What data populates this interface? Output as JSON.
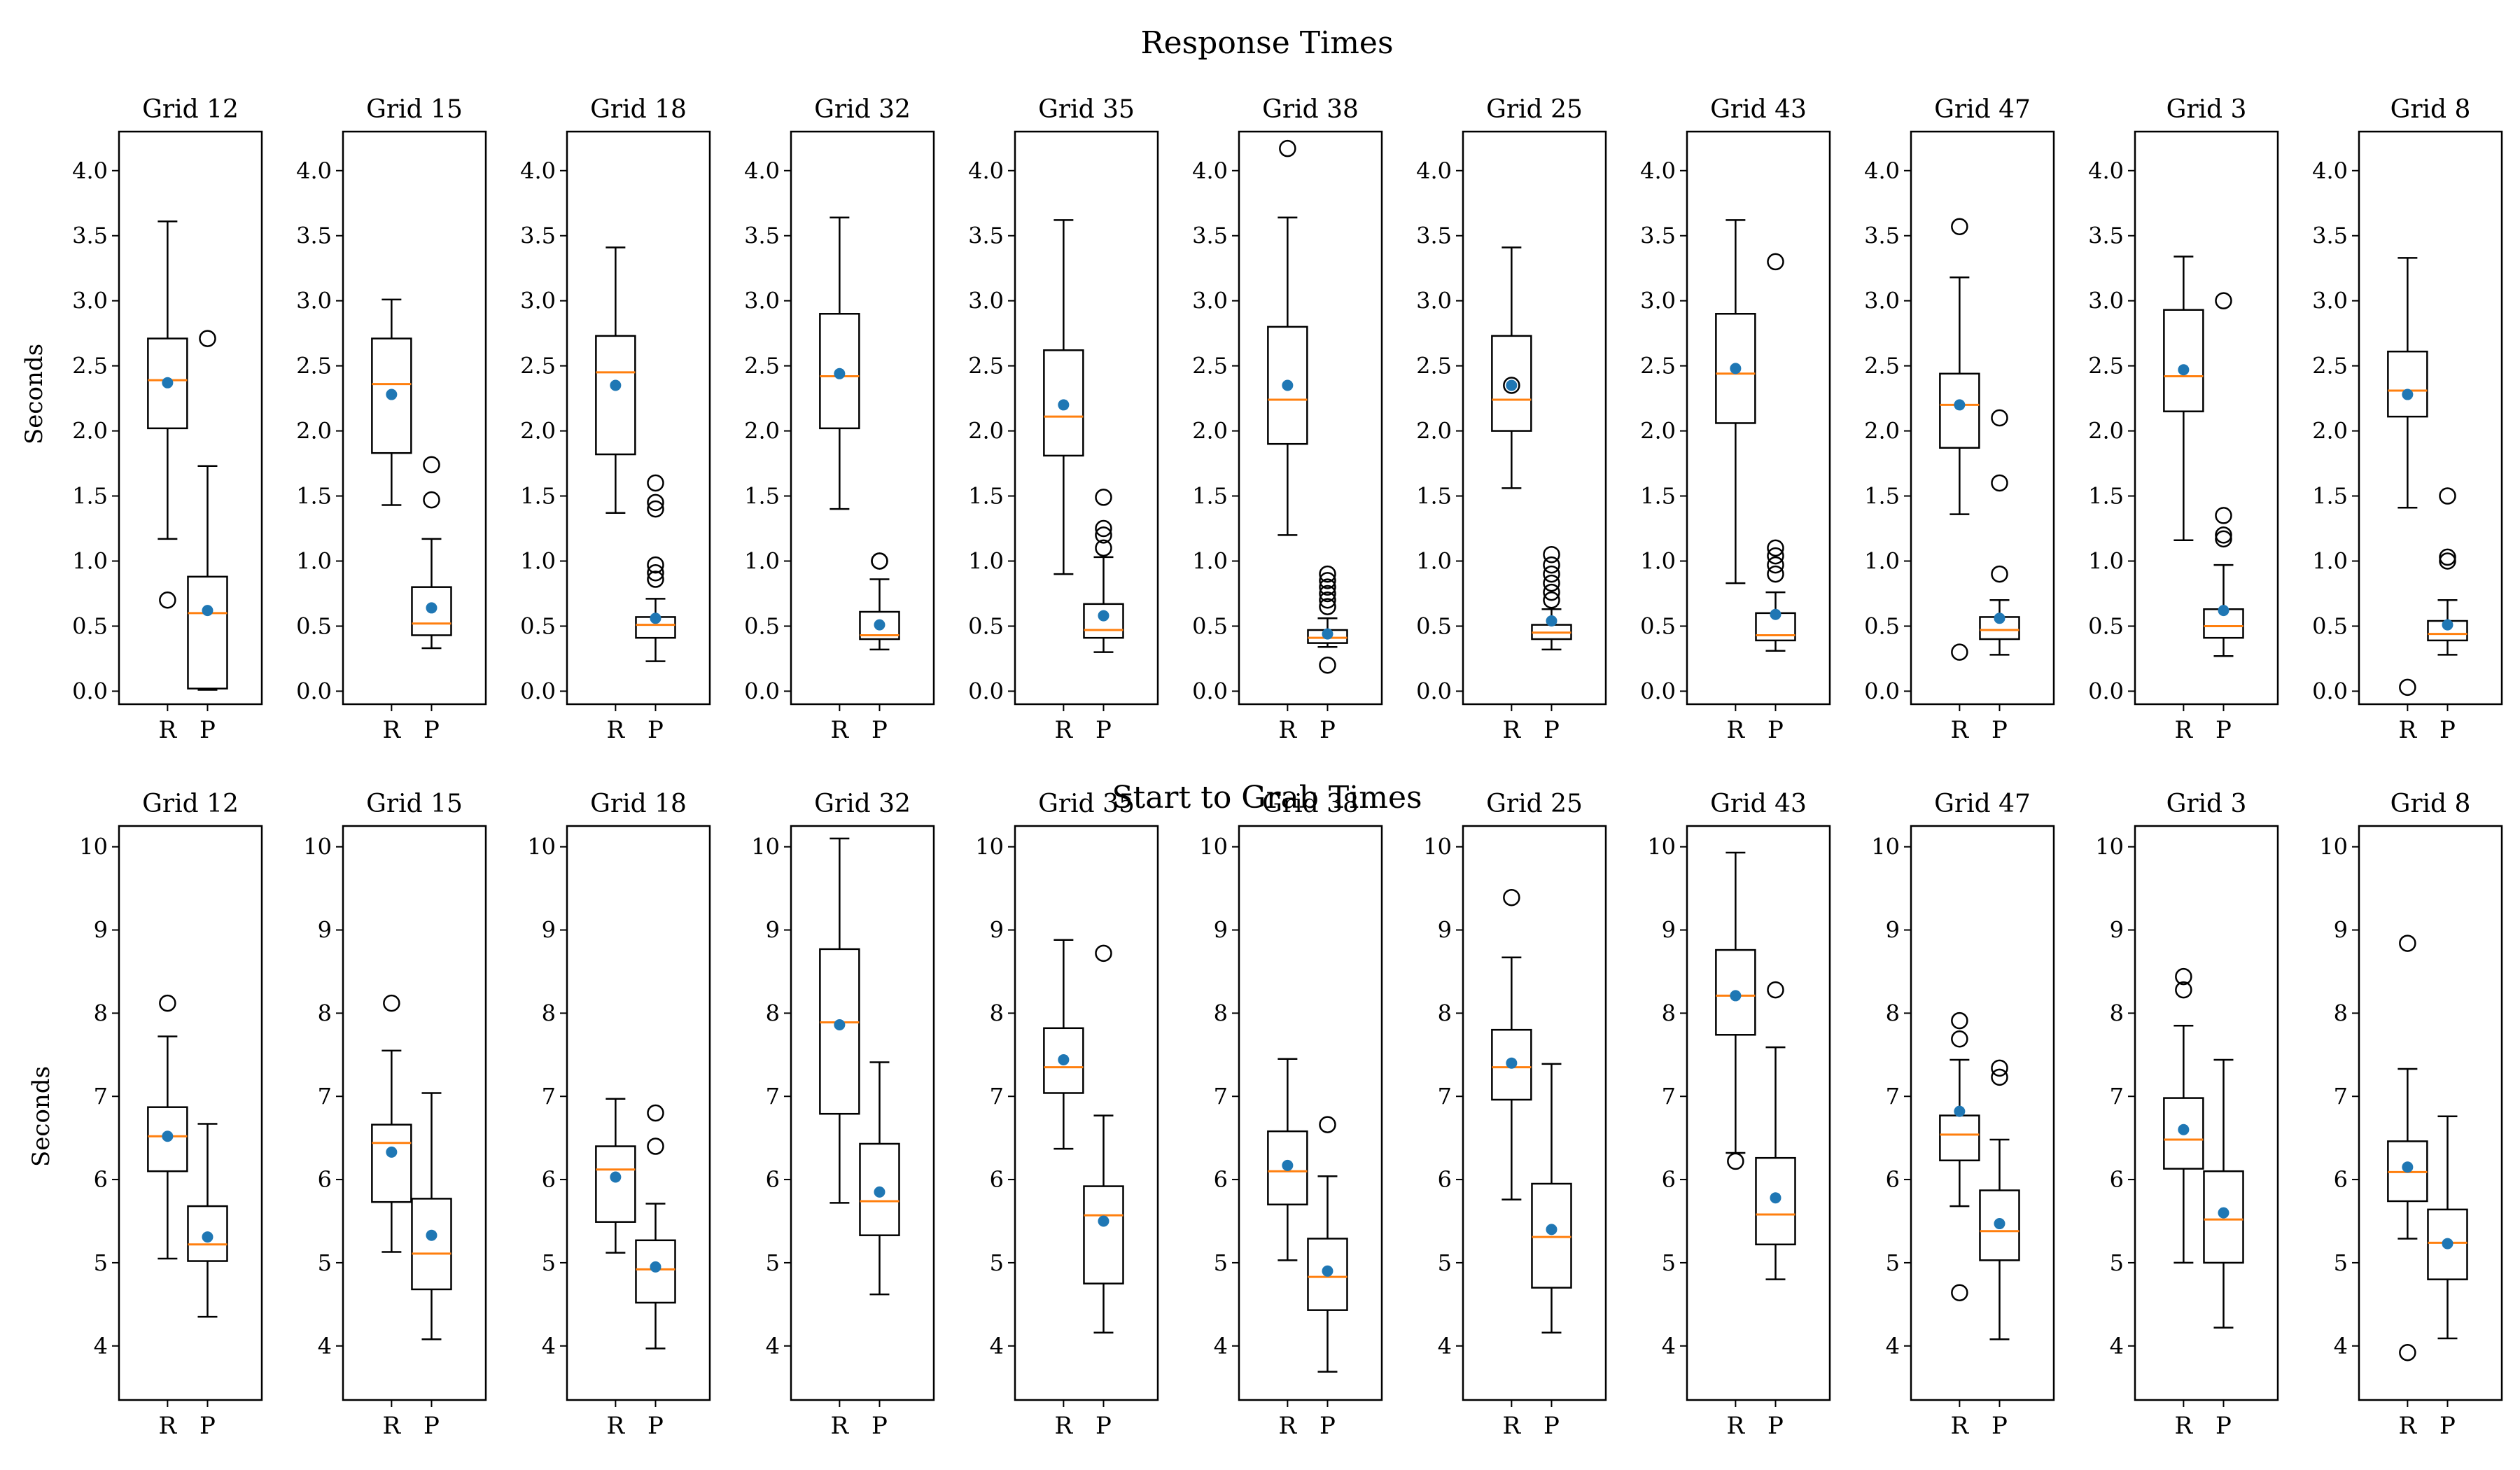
{
  "figure": {
    "rows": [
      {
        "title": "Response Times",
        "ylabel": "Seconds"
      },
      {
        "title": "Start to Grab Times",
        "ylabel": "Seconds"
      }
    ]
  },
  "colors": {
    "box": "#000000",
    "median": "#ff7f0e",
    "mean": "#1f77b4",
    "background": "#ffffff"
  },
  "chart_data": [
    {
      "type": "box",
      "title": "Response Times",
      "ylabel": "Seconds",
      "ylim": [
        -0.1,
        4.3
      ],
      "yticks": [
        0.0,
        0.5,
        1.0,
        1.5,
        2.0,
        2.5,
        3.0,
        3.5,
        4.0
      ],
      "ytick_labels": [
        "0.0",
        "0.5",
        "1.0",
        "1.5",
        "2.0",
        "2.5",
        "3.0",
        "3.5",
        "4.0"
      ],
      "categories": [
        "R",
        "P"
      ],
      "panels": [
        {
          "title": "Grid 12",
          "boxes": [
            {
              "label": "R",
              "wlo": 1.17,
              "q1": 2.02,
              "med": 2.39,
              "q3": 2.71,
              "whi": 3.61,
              "mean": 2.37,
              "fliers": [
                0.7
              ]
            },
            {
              "label": "P",
              "wlo": 0.01,
              "q1": 0.02,
              "med": 0.6,
              "q3": 0.88,
              "whi": 1.73,
              "mean": 0.62,
              "fliers": [
                2.71
              ]
            }
          ]
        },
        {
          "title": "Grid 15",
          "boxes": [
            {
              "label": "R",
              "wlo": 1.43,
              "q1": 1.83,
              "med": 2.36,
              "q3": 2.71,
              "whi": 3.01,
              "mean": 2.28,
              "fliers": []
            },
            {
              "label": "P",
              "wlo": 0.33,
              "q1": 0.43,
              "med": 0.52,
              "q3": 0.8,
              "whi": 1.17,
              "mean": 0.64,
              "fliers": [
                1.47,
                1.74
              ]
            }
          ]
        },
        {
          "title": "Grid 18",
          "boxes": [
            {
              "label": "R",
              "wlo": 1.37,
              "q1": 1.82,
              "med": 2.45,
              "q3": 2.73,
              "whi": 3.41,
              "mean": 2.35,
              "fliers": []
            },
            {
              "label": "P",
              "wlo": 0.23,
              "q1": 0.41,
              "med": 0.51,
              "q3": 0.57,
              "whi": 0.71,
              "mean": 0.56,
              "fliers": [
                0.86,
                0.91,
                0.97,
                1.4,
                1.45,
                1.6
              ]
            }
          ]
        },
        {
          "title": "Grid 32",
          "boxes": [
            {
              "label": "R",
              "wlo": 1.4,
              "q1": 2.02,
              "med": 2.42,
              "q3": 2.9,
              "whi": 3.64,
              "mean": 2.44,
              "fliers": []
            },
            {
              "label": "P",
              "wlo": 0.32,
              "q1": 0.4,
              "med": 0.43,
              "q3": 0.61,
              "whi": 0.86,
              "mean": 0.51,
              "fliers": [
                1.0,
                1.0
              ]
            }
          ]
        },
        {
          "title": "Grid 35",
          "boxes": [
            {
              "label": "R",
              "wlo": 0.9,
              "q1": 1.81,
              "med": 2.11,
              "q3": 2.62,
              "whi": 3.62,
              "mean": 2.2,
              "fliers": []
            },
            {
              "label": "P",
              "wlo": 0.3,
              "q1": 0.41,
              "med": 0.47,
              "q3": 0.67,
              "whi": 1.03,
              "mean": 0.58,
              "fliers": [
                1.1,
                1.2,
                1.25,
                1.49
              ]
            }
          ]
        },
        {
          "title": "Grid 38",
          "boxes": [
            {
              "label": "R",
              "wlo": 1.2,
              "q1": 1.9,
              "med": 2.24,
              "q3": 2.8,
              "whi": 3.64,
              "mean": 2.35,
              "fliers": [
                4.17
              ]
            },
            {
              "label": "P",
              "wlo": 0.34,
              "q1": 0.37,
              "med": 0.41,
              "q3": 0.47,
              "whi": 0.56,
              "mean": 0.44,
              "fliers": [
                0.2,
                0.65,
                0.7,
                0.75,
                0.8,
                0.85,
                0.9
              ]
            }
          ]
        },
        {
          "title": "Grid 25",
          "boxes": [
            {
              "label": "R",
              "wlo": 1.56,
              "q1": 2.0,
              "med": 2.24,
              "q3": 2.73,
              "whi": 3.41,
              "mean": 2.35,
              "fliers": [
                2.35
              ]
            },
            {
              "label": "P",
              "wlo": 0.32,
              "q1": 0.4,
              "med": 0.45,
              "q3": 0.51,
              "whi": 0.63,
              "mean": 0.54,
              "fliers": [
                0.7,
                0.76,
                0.83,
                0.9,
                0.97,
                1.05
              ]
            }
          ]
        },
        {
          "title": "Grid 43",
          "boxes": [
            {
              "label": "R",
              "wlo": 0.83,
              "q1": 2.06,
              "med": 2.44,
              "q3": 2.9,
              "whi": 3.62,
              "mean": 2.48,
              "fliers": []
            },
            {
              "label": "P",
              "wlo": 0.31,
              "q1": 0.39,
              "med": 0.43,
              "q3": 0.6,
              "whi": 0.76,
              "mean": 0.59,
              "fliers": [
                0.9,
                0.97,
                1.04,
                1.1,
                3.3
              ]
            }
          ]
        },
        {
          "title": "Grid 47",
          "boxes": [
            {
              "label": "R",
              "wlo": 1.36,
              "q1": 1.87,
              "med": 2.2,
              "q3": 2.44,
              "whi": 3.18,
              "mean": 2.2,
              "fliers": [
                0.3,
                3.57
              ]
            },
            {
              "label": "P",
              "wlo": 0.28,
              "q1": 0.4,
              "med": 0.47,
              "q3": 0.57,
              "whi": 0.7,
              "mean": 0.56,
              "fliers": [
                0.9,
                1.6,
                2.1
              ]
            }
          ]
        },
        {
          "title": "Grid 3",
          "boxes": [
            {
              "label": "R",
              "wlo": 1.16,
              "q1": 2.15,
              "med": 2.42,
              "q3": 2.93,
              "whi": 3.34,
              "mean": 2.47,
              "fliers": []
            },
            {
              "label": "P",
              "wlo": 0.27,
              "q1": 0.41,
              "med": 0.5,
              "q3": 0.63,
              "whi": 0.97,
              "mean": 0.62,
              "fliers": [
                1.17,
                1.2,
                1.35,
                3.0
              ]
            }
          ]
        },
        {
          "title": "Grid 8",
          "boxes": [
            {
              "label": "R",
              "wlo": 1.41,
              "q1": 2.11,
              "med": 2.31,
              "q3": 2.61,
              "whi": 3.33,
              "mean": 2.28,
              "fliers": [
                0.03
              ]
            },
            {
              "label": "P",
              "wlo": 0.28,
              "q1": 0.39,
              "med": 0.44,
              "q3": 0.54,
              "whi": 0.7,
              "mean": 0.51,
              "fliers": [
                1.0,
                1.03,
                1.5
              ]
            }
          ]
        }
      ]
    },
    {
      "type": "box",
      "title": "Start to Grab Times",
      "ylabel": "Seconds",
      "ylim": [
        3.35,
        10.25
      ],
      "yticks": [
        4,
        5,
        6,
        7,
        8,
        9,
        10
      ],
      "ytick_labels": [
        "4",
        "5",
        "6",
        "7",
        "8",
        "9",
        "10"
      ],
      "categories": [
        "R",
        "P"
      ],
      "panels": [
        {
          "title": "Grid 12",
          "boxes": [
            {
              "label": "R",
              "wlo": 5.05,
              "q1": 6.1,
              "med": 6.52,
              "q3": 6.87,
              "whi": 7.72,
              "mean": 6.52,
              "fliers": [
                8.12
              ]
            },
            {
              "label": "P",
              "wlo": 4.35,
              "q1": 5.02,
              "med": 5.22,
              "q3": 5.68,
              "whi": 6.67,
              "mean": 5.31,
              "fliers": []
            }
          ]
        },
        {
          "title": "Grid 15",
          "boxes": [
            {
              "label": "R",
              "wlo": 5.13,
              "q1": 5.73,
              "med": 6.44,
              "q3": 6.66,
              "whi": 7.55,
              "mean": 6.33,
              "fliers": [
                8.12
              ]
            },
            {
              "label": "P",
              "wlo": 4.08,
              "q1": 4.68,
              "med": 5.11,
              "q3": 5.77,
              "whi": 7.04,
              "mean": 5.33,
              "fliers": []
            }
          ]
        },
        {
          "title": "Grid 18",
          "boxes": [
            {
              "label": "R",
              "wlo": 5.12,
              "q1": 5.49,
              "med": 6.12,
              "q3": 6.4,
              "whi": 6.97,
              "mean": 6.03,
              "fliers": []
            },
            {
              "label": "P",
              "wlo": 3.97,
              "q1": 4.52,
              "med": 4.92,
              "q3": 5.27,
              "whi": 5.71,
              "mean": 4.95,
              "fliers": [
                6.4,
                6.8
              ]
            }
          ]
        },
        {
          "title": "Grid 32",
          "boxes": [
            {
              "label": "R",
              "wlo": 5.72,
              "q1": 6.79,
              "med": 7.89,
              "q3": 8.77,
              "whi": 10.1,
              "mean": 7.86,
              "fliers": []
            },
            {
              "label": "P",
              "wlo": 4.62,
              "q1": 5.33,
              "med": 5.74,
              "q3": 6.43,
              "whi": 7.41,
              "mean": 5.85,
              "fliers": []
            }
          ]
        },
        {
          "title": "Grid 35",
          "boxes": [
            {
              "label": "R",
              "wlo": 6.37,
              "q1": 7.04,
              "med": 7.35,
              "q3": 7.82,
              "whi": 8.88,
              "mean": 7.44,
              "fliers": []
            },
            {
              "label": "P",
              "wlo": 4.16,
              "q1": 4.75,
              "med": 5.57,
              "q3": 5.92,
              "whi": 6.77,
              "mean": 5.5,
              "fliers": [
                8.72
              ]
            }
          ]
        },
        {
          "title": "Grid 38",
          "boxes": [
            {
              "label": "R",
              "wlo": 5.03,
              "q1": 5.7,
              "med": 6.1,
              "q3": 6.58,
              "whi": 7.45,
              "mean": 6.17,
              "fliers": []
            },
            {
              "label": "P",
              "wlo": 3.69,
              "q1": 4.43,
              "med": 4.83,
              "q3": 5.29,
              "whi": 6.04,
              "mean": 4.9,
              "fliers": [
                6.66
              ]
            }
          ]
        },
        {
          "title": "Grid 25",
          "boxes": [
            {
              "label": "R",
              "wlo": 5.76,
              "q1": 6.96,
              "med": 7.35,
              "q3": 7.8,
              "whi": 8.67,
              "mean": 7.4,
              "fliers": [
                9.39
              ]
            },
            {
              "label": "P",
              "wlo": 4.16,
              "q1": 4.7,
              "med": 5.31,
              "q3": 5.95,
              "whi": 7.39,
              "mean": 5.4,
              "fliers": []
            }
          ]
        },
        {
          "title": "Grid 43",
          "boxes": [
            {
              "label": "R",
              "wlo": 6.32,
              "q1": 7.74,
              "med": 8.21,
              "q3": 8.76,
              "whi": 9.93,
              "mean": 8.21,
              "fliers": [
                6.22
              ]
            },
            {
              "label": "P",
              "wlo": 4.8,
              "q1": 5.22,
              "med": 5.58,
              "q3": 6.26,
              "whi": 7.59,
              "mean": 5.78,
              "fliers": [
                8.28
              ]
            }
          ]
        },
        {
          "title": "Grid 47",
          "boxes": [
            {
              "label": "R",
              "wlo": 5.68,
              "q1": 6.23,
              "med": 6.54,
              "q3": 6.77,
              "whi": 7.44,
              "mean": 6.82,
              "fliers": [
                4.64,
                7.69,
                7.91
              ]
            },
            {
              "label": "P",
              "wlo": 4.08,
              "q1": 5.03,
              "med": 5.38,
              "q3": 5.87,
              "whi": 6.48,
              "mean": 5.47,
              "fliers": [
                7.23,
                7.34
              ]
            }
          ]
        },
        {
          "title": "Grid 3",
          "boxes": [
            {
              "label": "R",
              "wlo": 5.0,
              "q1": 6.13,
              "med": 6.48,
              "q3": 6.98,
              "whi": 7.85,
              "mean": 6.6,
              "fliers": [
                8.28,
                8.44
              ]
            },
            {
              "label": "P",
              "wlo": 4.22,
              "q1": 5.0,
              "med": 5.52,
              "q3": 6.1,
              "whi": 7.44,
              "mean": 5.6,
              "fliers": []
            }
          ]
        },
        {
          "title": "Grid 8",
          "boxes": [
            {
              "label": "R",
              "wlo": 5.29,
              "q1": 5.74,
              "med": 6.09,
              "q3": 6.46,
              "whi": 7.33,
              "mean": 6.15,
              "fliers": [
                3.92,
                8.84
              ]
            },
            {
              "label": "P",
              "wlo": 4.09,
              "q1": 4.8,
              "med": 5.24,
              "q3": 5.64,
              "whi": 6.76,
              "mean": 5.23,
              "fliers": []
            }
          ]
        }
      ]
    }
  ]
}
